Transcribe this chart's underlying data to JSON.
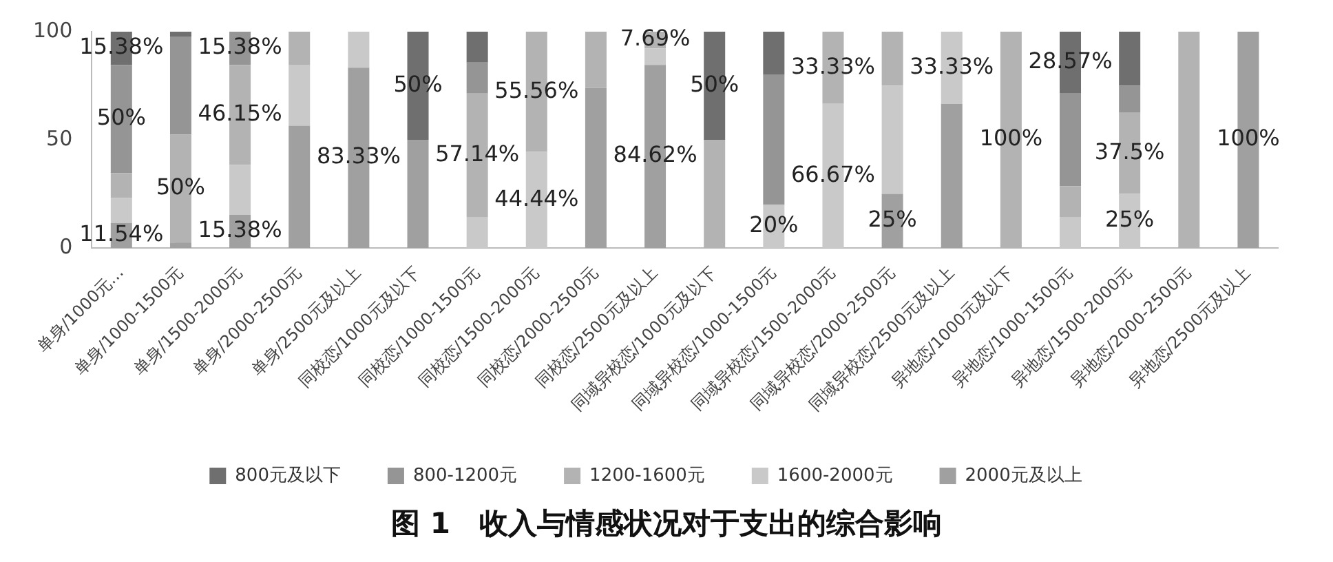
{
  "chart_data": {
    "type": "bar",
    "stacked": true,
    "title": "图 1　收入与情感状况对于支出的综合影响",
    "categories": [
      "单身/1000元…",
      "单身/1000-1500元",
      "单身/1500-2000元",
      "单身/2000-2500元",
      "单身/2500元及以上",
      "同校恋/1000元及以下",
      "同校恋/1000-1500元",
      "同校恋/1500-2000元",
      "同校恋/2000-2500元",
      "同校恋/2500元及以上",
      "同域异校恋/1000元及以下",
      "同域异校恋/1000-1500元",
      "同域异校恋/1500-2000元",
      "同域异校恋/2000-2500元",
      "同域异校恋/2500元及以上",
      "异地恋/1000元及以下",
      "异地恋/1000-1500元",
      "异地恋/1500-2000元",
      "异地恋/2000-2500元",
      "异地恋/2500元及以上"
    ],
    "series": [
      {
        "name": "2000元及以上",
        "color": "#a0a0a0",
        "values": [
          11.54,
          2.5,
          15.38,
          56.5,
          83.33,
          50,
          0,
          0,
          74,
          84.62,
          0,
          0,
          0,
          25,
          66.67,
          0,
          0,
          0,
          0,
          100
        ],
        "value_labels": [
          "11.54%",
          null,
          "15.38%",
          null,
          "83.33%",
          null,
          null,
          null,
          null,
          "84.62%",
          null,
          null,
          null,
          "25%",
          null,
          null,
          null,
          null,
          null,
          "100%"
        ]
      },
      {
        "name": "1600-2000元",
        "color": "#c9c9c9",
        "values": [
          11.54,
          0,
          23.08,
          28,
          16.67,
          0,
          14.29,
          44.44,
          0,
          7.69,
          0,
          20,
          66.67,
          50,
          33.33,
          0,
          14.29,
          25,
          0,
          0
        ],
        "value_labels": [
          null,
          null,
          null,
          null,
          null,
          null,
          null,
          "44.44%",
          null,
          null,
          null,
          "20%",
          "66.67%",
          null,
          "33.33%",
          null,
          null,
          "25%",
          null,
          null
        ]
      },
      {
        "name": "1200-1600元",
        "color": "#b3b3b3",
        "values": [
          11.54,
          50,
          46.15,
          15.5,
          0,
          0,
          57.14,
          55.56,
          26,
          7.69,
          50,
          0,
          33.33,
          25,
          0,
          100,
          14.29,
          37.5,
          100,
          0
        ],
        "value_labels": [
          null,
          "50%",
          "46.15%",
          null,
          null,
          null,
          "57.14%",
          "55.56%",
          null,
          "7.69%",
          null,
          null,
          "33.33%",
          null,
          null,
          "100%",
          null,
          "37.5%",
          null,
          null
        ]
      },
      {
        "name": "800-1200元",
        "color": "#959595",
        "values": [
          50,
          45,
          15.38,
          0,
          0,
          0,
          14.29,
          0,
          0,
          0,
          0,
          60,
          0,
          0,
          0,
          0,
          42.86,
          12.5,
          0,
          0
        ],
        "value_labels": [
          "50%",
          null,
          "15.38%",
          null,
          null,
          null,
          null,
          null,
          null,
          null,
          null,
          null,
          null,
          null,
          null,
          null,
          null,
          null,
          null,
          null
        ]
      },
      {
        "name": "800元及以下",
        "color": "#6f6f6f",
        "values": [
          15.38,
          2.5,
          0,
          0,
          0,
          50,
          14.29,
          0,
          0,
          0,
          50,
          20,
          0,
          0,
          0,
          0,
          28.57,
          25,
          0,
          0
        ],
        "value_labels": [
          "15.38%",
          null,
          null,
          null,
          null,
          "50%",
          null,
          null,
          null,
          null,
          "50%",
          null,
          null,
          null,
          null,
          null,
          "28.57%",
          null,
          null,
          null
        ]
      }
    ],
    "ylim": [
      0,
      100
    ],
    "yticks": [
      0,
      50,
      100
    ],
    "grid": false,
    "legend": "bottom"
  }
}
